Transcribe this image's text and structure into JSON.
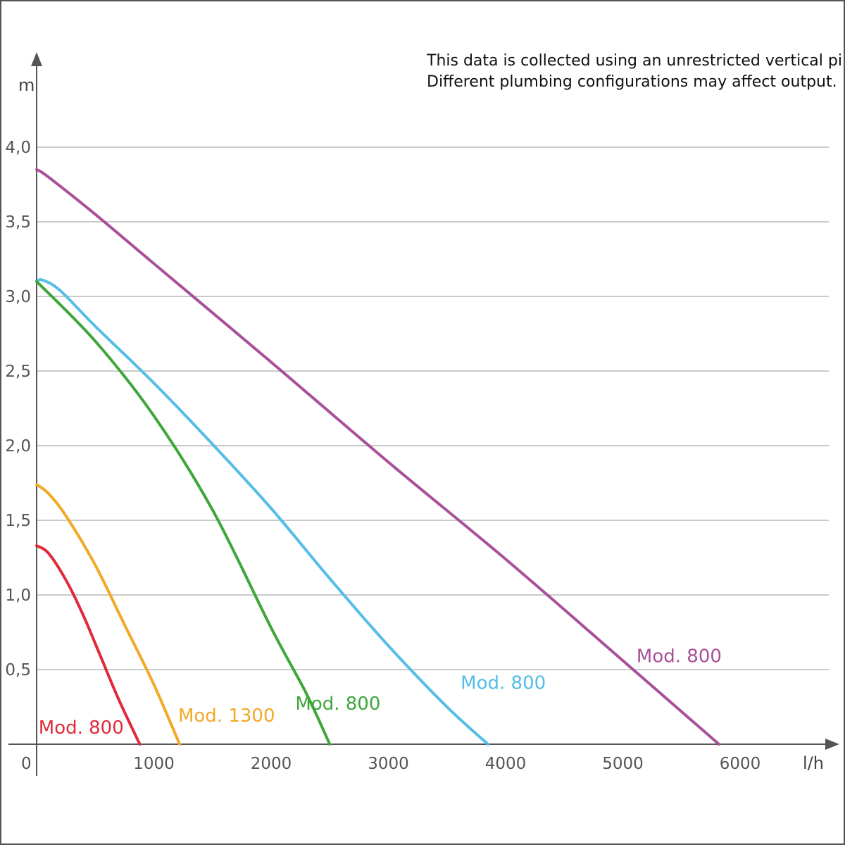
{
  "chart_data": {
    "type": "line",
    "xlabel": "l/h",
    "ylabel": "m",
    "origin_label": "0",
    "xlim": [
      0,
      6800
    ],
    "ylim": [
      0,
      4.5
    ],
    "x_ticks": [
      1000,
      2000,
      3000,
      4000,
      5000,
      6000
    ],
    "x_tick_labels": [
      "1000",
      "2000",
      "3000",
      "4000",
      "5000",
      "6000"
    ],
    "y_ticks": [
      0.5,
      1.0,
      1.5,
      2.0,
      2.5,
      3.0,
      3.5,
      4.0
    ],
    "y_tick_labels": [
      "0,5",
      "1,0",
      "1,5",
      "2,0",
      "2,5",
      "3,0",
      "3,5",
      "4,0"
    ],
    "grid": "horizontal",
    "annotation": [
      "This data is collected using an unrestricted vertical pipe.",
      "Different plumbing configurations may affect output."
    ],
    "series": [
      {
        "name": "Mod. 800",
        "color": "#a8519a",
        "x": [
          0,
          100,
          500,
          1000,
          2000,
          3000,
          4000,
          5000,
          5820
        ],
        "y": [
          3.85,
          3.8,
          3.55,
          3.22,
          2.56,
          1.89,
          1.24,
          0.56,
          0.0
        ]
      },
      {
        "name": "Mod. 800",
        "color": "#55bde6",
        "x": [
          0,
          50,
          200,
          500,
          1000,
          1500,
          2000,
          2500,
          3000,
          3500,
          3850
        ],
        "y": [
          3.1,
          3.11,
          3.04,
          2.8,
          2.42,
          2.01,
          1.58,
          1.11,
          0.66,
          0.25,
          0.0
        ]
      },
      {
        "name": "Mod. 800",
        "color": "#3fa63b",
        "x": [
          0,
          500,
          1000,
          1500,
          2000,
          2300,
          2500
        ],
        "y": [
          3.1,
          2.7,
          2.2,
          1.57,
          0.78,
          0.34,
          0.0
        ]
      },
      {
        "name": "Mod. 1300",
        "color": "#f2a926",
        "x": [
          0,
          100,
          250,
          500,
          750,
          1000,
          1220
        ],
        "y": [
          1.74,
          1.68,
          1.53,
          1.2,
          0.8,
          0.4,
          0.0
        ]
      },
      {
        "name": "Mod. 800",
        "color": "#e02a39",
        "x": [
          0,
          100,
          250,
          400,
          550,
          700,
          880
        ],
        "y": [
          1.33,
          1.28,
          1.1,
          0.86,
          0.58,
          0.3,
          0.0
        ]
      }
    ],
    "labels": [
      {
        "text": "Mod. 800",
        "color": "#a8519a",
        "x": 5480,
        "y": 0.55
      },
      {
        "text": "Mod. 800",
        "color": "#55bde6",
        "x": 3980,
        "y": 0.37
      },
      {
        "text": "Mod. 800",
        "color": "#3fa63b",
        "x": 2570,
        "y": 0.23
      },
      {
        "text": "Mod. 1300",
        "color": "#f2a926",
        "x": 1620,
        "y": 0.15
      },
      {
        "text": "Mod. 800",
        "color": "#e02a39",
        "x": 380,
        "y": 0.07
      }
    ]
  }
}
